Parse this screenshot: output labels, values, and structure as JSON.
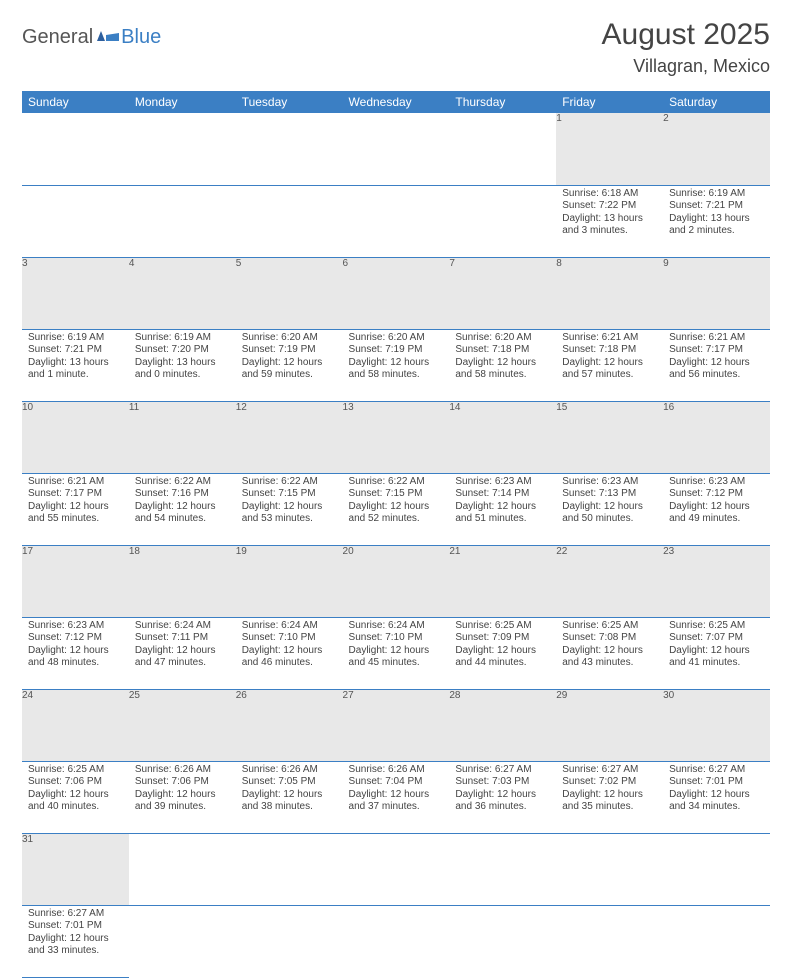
{
  "logo": {
    "general": "General",
    "blue": "Blue"
  },
  "title": "August 2025",
  "location": "Villagran, Mexico",
  "colors": {
    "header_bg": "#3b7fc4",
    "header_text": "#ffffff",
    "daynum_bg": "#e8e8e8",
    "daynum_text": "#555555",
    "body_text": "#444444",
    "row_border": "#3b7fc4",
    "logo_general": "#555555",
    "logo_blue": "#3b7fc4",
    "background": "#ffffff"
  },
  "typography": {
    "title_fontsize": 30,
    "location_fontsize": 18,
    "dayheader_fontsize": 12,
    "daynum_fontsize": 11,
    "cell_fontsize": 10,
    "font_family": "Arial"
  },
  "day_names": [
    "Sunday",
    "Monday",
    "Tuesday",
    "Wednesday",
    "Thursday",
    "Friday",
    "Saturday"
  ],
  "weeks": [
    [
      null,
      null,
      null,
      null,
      null,
      {
        "n": "1",
        "sunrise": "Sunrise: 6:18 AM",
        "sunset": "Sunset: 7:22 PM",
        "daylight": "Daylight: 13 hours and 3 minutes."
      },
      {
        "n": "2",
        "sunrise": "Sunrise: 6:19 AM",
        "sunset": "Sunset: 7:21 PM",
        "daylight": "Daylight: 13 hours and 2 minutes."
      }
    ],
    [
      {
        "n": "3",
        "sunrise": "Sunrise: 6:19 AM",
        "sunset": "Sunset: 7:21 PM",
        "daylight": "Daylight: 13 hours and 1 minute."
      },
      {
        "n": "4",
        "sunrise": "Sunrise: 6:19 AM",
        "sunset": "Sunset: 7:20 PM",
        "daylight": "Daylight: 13 hours and 0 minutes."
      },
      {
        "n": "5",
        "sunrise": "Sunrise: 6:20 AM",
        "sunset": "Sunset: 7:19 PM",
        "daylight": "Daylight: 12 hours and 59 minutes."
      },
      {
        "n": "6",
        "sunrise": "Sunrise: 6:20 AM",
        "sunset": "Sunset: 7:19 PM",
        "daylight": "Daylight: 12 hours and 58 minutes."
      },
      {
        "n": "7",
        "sunrise": "Sunrise: 6:20 AM",
        "sunset": "Sunset: 7:18 PM",
        "daylight": "Daylight: 12 hours and 58 minutes."
      },
      {
        "n": "8",
        "sunrise": "Sunrise: 6:21 AM",
        "sunset": "Sunset: 7:18 PM",
        "daylight": "Daylight: 12 hours and 57 minutes."
      },
      {
        "n": "9",
        "sunrise": "Sunrise: 6:21 AM",
        "sunset": "Sunset: 7:17 PM",
        "daylight": "Daylight: 12 hours and 56 minutes."
      }
    ],
    [
      {
        "n": "10",
        "sunrise": "Sunrise: 6:21 AM",
        "sunset": "Sunset: 7:17 PM",
        "daylight": "Daylight: 12 hours and 55 minutes."
      },
      {
        "n": "11",
        "sunrise": "Sunrise: 6:22 AM",
        "sunset": "Sunset: 7:16 PM",
        "daylight": "Daylight: 12 hours and 54 minutes."
      },
      {
        "n": "12",
        "sunrise": "Sunrise: 6:22 AM",
        "sunset": "Sunset: 7:15 PM",
        "daylight": "Daylight: 12 hours and 53 minutes."
      },
      {
        "n": "13",
        "sunrise": "Sunrise: 6:22 AM",
        "sunset": "Sunset: 7:15 PM",
        "daylight": "Daylight: 12 hours and 52 minutes."
      },
      {
        "n": "14",
        "sunrise": "Sunrise: 6:23 AM",
        "sunset": "Sunset: 7:14 PM",
        "daylight": "Daylight: 12 hours and 51 minutes."
      },
      {
        "n": "15",
        "sunrise": "Sunrise: 6:23 AM",
        "sunset": "Sunset: 7:13 PM",
        "daylight": "Daylight: 12 hours and 50 minutes."
      },
      {
        "n": "16",
        "sunrise": "Sunrise: 6:23 AM",
        "sunset": "Sunset: 7:12 PM",
        "daylight": "Daylight: 12 hours and 49 minutes."
      }
    ],
    [
      {
        "n": "17",
        "sunrise": "Sunrise: 6:23 AM",
        "sunset": "Sunset: 7:12 PM",
        "daylight": "Daylight: 12 hours and 48 minutes."
      },
      {
        "n": "18",
        "sunrise": "Sunrise: 6:24 AM",
        "sunset": "Sunset: 7:11 PM",
        "daylight": "Daylight: 12 hours and 47 minutes."
      },
      {
        "n": "19",
        "sunrise": "Sunrise: 6:24 AM",
        "sunset": "Sunset: 7:10 PM",
        "daylight": "Daylight: 12 hours and 46 minutes."
      },
      {
        "n": "20",
        "sunrise": "Sunrise: 6:24 AM",
        "sunset": "Sunset: 7:10 PM",
        "daylight": "Daylight: 12 hours and 45 minutes."
      },
      {
        "n": "21",
        "sunrise": "Sunrise: 6:25 AM",
        "sunset": "Sunset: 7:09 PM",
        "daylight": "Daylight: 12 hours and 44 minutes."
      },
      {
        "n": "22",
        "sunrise": "Sunrise: 6:25 AM",
        "sunset": "Sunset: 7:08 PM",
        "daylight": "Daylight: 12 hours and 43 minutes."
      },
      {
        "n": "23",
        "sunrise": "Sunrise: 6:25 AM",
        "sunset": "Sunset: 7:07 PM",
        "daylight": "Daylight: 12 hours and 41 minutes."
      }
    ],
    [
      {
        "n": "24",
        "sunrise": "Sunrise: 6:25 AM",
        "sunset": "Sunset: 7:06 PM",
        "daylight": "Daylight: 12 hours and 40 minutes."
      },
      {
        "n": "25",
        "sunrise": "Sunrise: 6:26 AM",
        "sunset": "Sunset: 7:06 PM",
        "daylight": "Daylight: 12 hours and 39 minutes."
      },
      {
        "n": "26",
        "sunrise": "Sunrise: 6:26 AM",
        "sunset": "Sunset: 7:05 PM",
        "daylight": "Daylight: 12 hours and 38 minutes."
      },
      {
        "n": "27",
        "sunrise": "Sunrise: 6:26 AM",
        "sunset": "Sunset: 7:04 PM",
        "daylight": "Daylight: 12 hours and 37 minutes."
      },
      {
        "n": "28",
        "sunrise": "Sunrise: 6:27 AM",
        "sunset": "Sunset: 7:03 PM",
        "daylight": "Daylight: 12 hours and 36 minutes."
      },
      {
        "n": "29",
        "sunrise": "Sunrise: 6:27 AM",
        "sunset": "Sunset: 7:02 PM",
        "daylight": "Daylight: 12 hours and 35 minutes."
      },
      {
        "n": "30",
        "sunrise": "Sunrise: 6:27 AM",
        "sunset": "Sunset: 7:01 PM",
        "daylight": "Daylight: 12 hours and 34 minutes."
      }
    ],
    [
      {
        "n": "31",
        "sunrise": "Sunrise: 6:27 AM",
        "sunset": "Sunset: 7:01 PM",
        "daylight": "Daylight: 12 hours and 33 minutes."
      },
      null,
      null,
      null,
      null,
      null,
      null
    ]
  ]
}
